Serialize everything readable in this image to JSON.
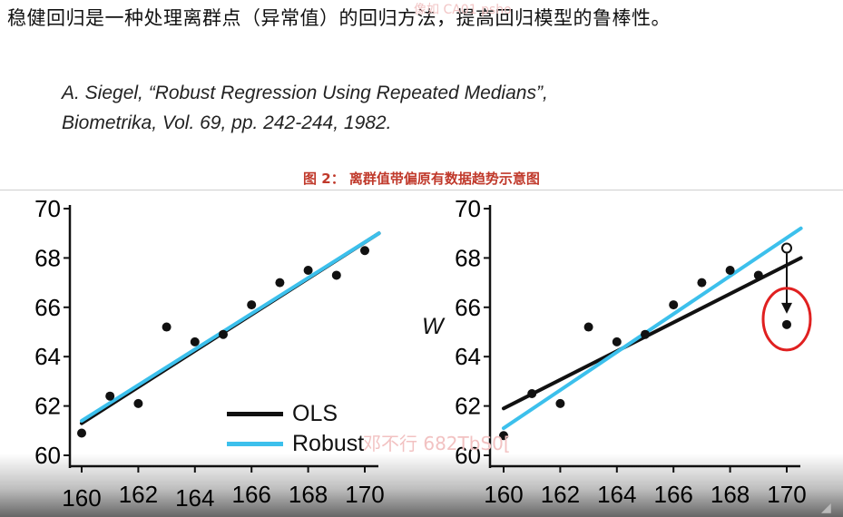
{
  "headline": "稳健回归是一种处理离群点（异常值）的回归方法，提高回归模型的鲁棒性。",
  "citation": {
    "line1": "A. Siegel, “Robust Regression Using Repeated Medians”,",
    "line2": "Biometrika, Vol. 69, pp. 242-244, 1982."
  },
  "figure_title": "图 2：  离群值带偏原有数据趋势示意图",
  "legend": [
    {
      "label": "OLS",
      "color": "#111111"
    },
    {
      "label": "Robust",
      "color": "#3cc0ec"
    }
  ],
  "y_axis_label_right": "W",
  "watermarks": {
    "top": "像如 CA01 psho",
    "bottom": "邓不行 682TbS0["
  },
  "colors": {
    "ols": "#111111",
    "robust": "#3cc0ec",
    "outlier_circle": "#e02020",
    "points": "#111111"
  },
  "chart_data": [
    {
      "type": "scatter",
      "xlim": [
        160,
        170
      ],
      "ylim": [
        60,
        70
      ],
      "xticks": [
        160,
        162,
        164,
        166,
        168,
        170
      ],
      "yticks": [
        60,
        62,
        64,
        66,
        68,
        70
      ],
      "points": [
        [
          160,
          60.9
        ],
        [
          161,
          62.4
        ],
        [
          162,
          62.1
        ],
        [
          163,
          65.2
        ],
        [
          164,
          64.6
        ],
        [
          165,
          64.9
        ],
        [
          166,
          66.1
        ],
        [
          167,
          67.0
        ],
        [
          168,
          67.5
        ],
        [
          169,
          67.3
        ],
        [
          170,
          68.3
        ]
      ],
      "lines": [
        {
          "name": "OLS",
          "x": [
            160,
            170.5
          ],
          "y": [
            61.3,
            69.0
          ]
        },
        {
          "name": "Robust",
          "x": [
            160,
            170.5
          ],
          "y": [
            61.4,
            69.0
          ]
        }
      ]
    },
    {
      "type": "scatter",
      "xlim": [
        160,
        170
      ],
      "ylim": [
        60,
        70
      ],
      "xticks": [
        160,
        162,
        164,
        166,
        168,
        170
      ],
      "yticks": [
        60,
        62,
        64,
        66,
        68,
        70
      ],
      "points": [
        [
          160,
          60.8
        ],
        [
          161,
          62.5
        ],
        [
          162,
          62.1
        ],
        [
          163,
          65.2
        ],
        [
          164,
          64.6
        ],
        [
          165,
          64.9
        ],
        [
          166,
          66.1
        ],
        [
          167,
          67.0
        ],
        [
          168,
          67.5
        ],
        [
          169,
          67.3
        ],
        [
          170,
          65.3
        ]
      ],
      "original_point": [
        170,
        68.4
      ],
      "outlier_point": [
        170,
        65.3
      ],
      "lines": [
        {
          "name": "OLS",
          "x": [
            160,
            170.5
          ],
          "y": [
            61.9,
            68.0
          ]
        },
        {
          "name": "Robust",
          "x": [
            160,
            170.5
          ],
          "y": [
            61.1,
            69.2
          ]
        }
      ]
    }
  ]
}
